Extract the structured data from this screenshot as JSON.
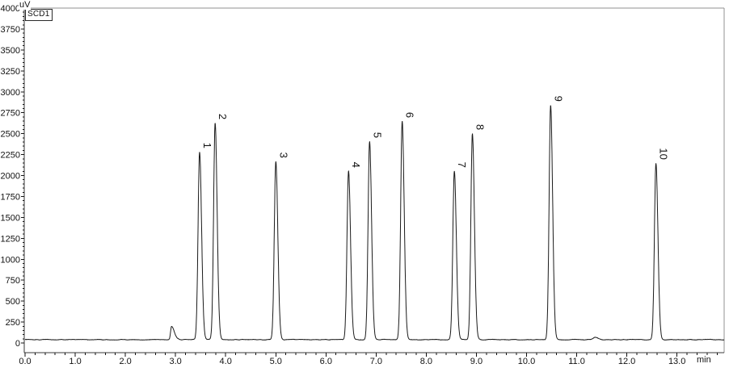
{
  "window": {
    "detector_label": "SCD1"
  },
  "chart_data": {
    "type": "line",
    "title": "SCD1",
    "y_unit": "uV",
    "x_unit": "min",
    "x_axis": {
      "min": 0,
      "max": 13.94,
      "major_tick": 1.0,
      "minor_tick": 0.2,
      "last_labeled_tick": 13.0,
      "tick_label_decimals": 1
    },
    "y_axis": {
      "min": 0,
      "max": 4000,
      "major_tick": 250,
      "minor_tick": 50
    },
    "grid": "off",
    "legend_position": "top-left",
    "baseline_uV": 40,
    "noise_uV": 4,
    "trace_color": "#1a1a1a",
    "frame_color": "#909090",
    "axis_color": "#3a3a3a",
    "tick_color": "#111111",
    "label_color": "#111111",
    "peaks": [
      {
        "label": "1",
        "rt_min": 3.48,
        "height_uV": 2285
      },
      {
        "label": "2",
        "rt_min": 3.79,
        "height_uV": 2630
      },
      {
        "label": "3",
        "rt_min": 5.0,
        "height_uV": 2170
      },
      {
        "label": "4",
        "rt_min": 6.45,
        "height_uV": 2055
      },
      {
        "label": "5",
        "rt_min": 6.87,
        "height_uV": 2410
      },
      {
        "label": "6",
        "rt_min": 7.52,
        "height_uV": 2650
      },
      {
        "label": "7",
        "rt_min": 8.56,
        "height_uV": 2055
      },
      {
        "label": "8",
        "rt_min": 8.92,
        "height_uV": 2505
      },
      {
        "label": "9",
        "rt_min": 10.48,
        "height_uV": 2845
      },
      {
        "label": "10",
        "rt_min": 12.58,
        "height_uV": 2150
      }
    ],
    "unlabeled_peaks": [
      {
        "rt_min": 2.92,
        "height_uV": 195
      },
      {
        "rt_min": 11.38,
        "height_uV": 70
      }
    ]
  }
}
